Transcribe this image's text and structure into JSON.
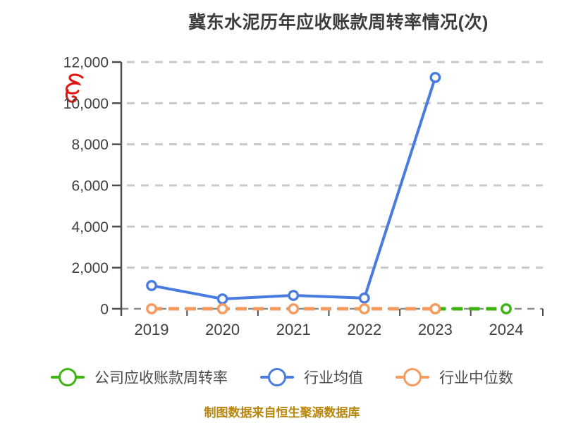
{
  "title": "冀东水泥历年应收账款周转率情况(次)",
  "footer": "制图数据来自恒生聚源数据库",
  "annotation": {
    "description": "red handwritten scribble resembling letter B",
    "color": "#e3120b"
  },
  "colors": {
    "company_green": "#3db414",
    "industry_avg_blue": "#4a7ce0",
    "industry_median_orange": "#f79a5e",
    "title_text": "#3d3d3d",
    "axis_text": "#3f3f3f",
    "legend_text": "#4a4a4a",
    "gridline": "#c9c9c9",
    "zero_line": "#8a8a8a",
    "axis_line": "#4d4d4d",
    "footer_text": "#b8860b"
  },
  "legend": {
    "items": [
      {
        "label": "公司应收账款周转率",
        "series_index": 0
      },
      {
        "label": "行业均值",
        "series_index": 1
      },
      {
        "label": "行业中位数",
        "series_index": 2
      }
    ]
  },
  "chart_data": {
    "type": "line",
    "title": "冀东水泥历年应收账款周转率情况(次)",
    "categories": [
      "2019",
      "2020",
      "2021",
      "2022",
      "2023",
      "2024"
    ],
    "series": [
      {
        "name": "公司应收账款周转率",
        "color": "#3db414",
        "line_style": "dashed",
        "values": [
          null,
          null,
          null,
          null,
          0,
          0
        ],
        "note": "values near zero on a 0-12000 axis; line visible only from 2023 to 2024"
      },
      {
        "name": "行业均值",
        "color": "#4a7ce0",
        "line_style": "solid",
        "values": [
          1130,
          480,
          650,
          520,
          11250,
          null
        ]
      },
      {
        "name": "行业中位数",
        "color": "#f79a5e",
        "line_style": "dashed",
        "values": [
          0,
          0,
          0,
          0,
          0,
          null
        ],
        "note": "values near zero on a 0-12000 axis"
      }
    ],
    "xlabel": "",
    "ylabel": "",
    "ylim": [
      0,
      12000
    ],
    "ytick_values": [
      0,
      2000,
      4000,
      6000,
      8000,
      10000,
      12000
    ],
    "ytick_labels": [
      "0",
      "2,000",
      "4,000",
      "6,000",
      "8,000",
      "10,000",
      "12,000"
    ],
    "grid": "horizontal dashed gridlines",
    "legend_position": "bottom"
  }
}
